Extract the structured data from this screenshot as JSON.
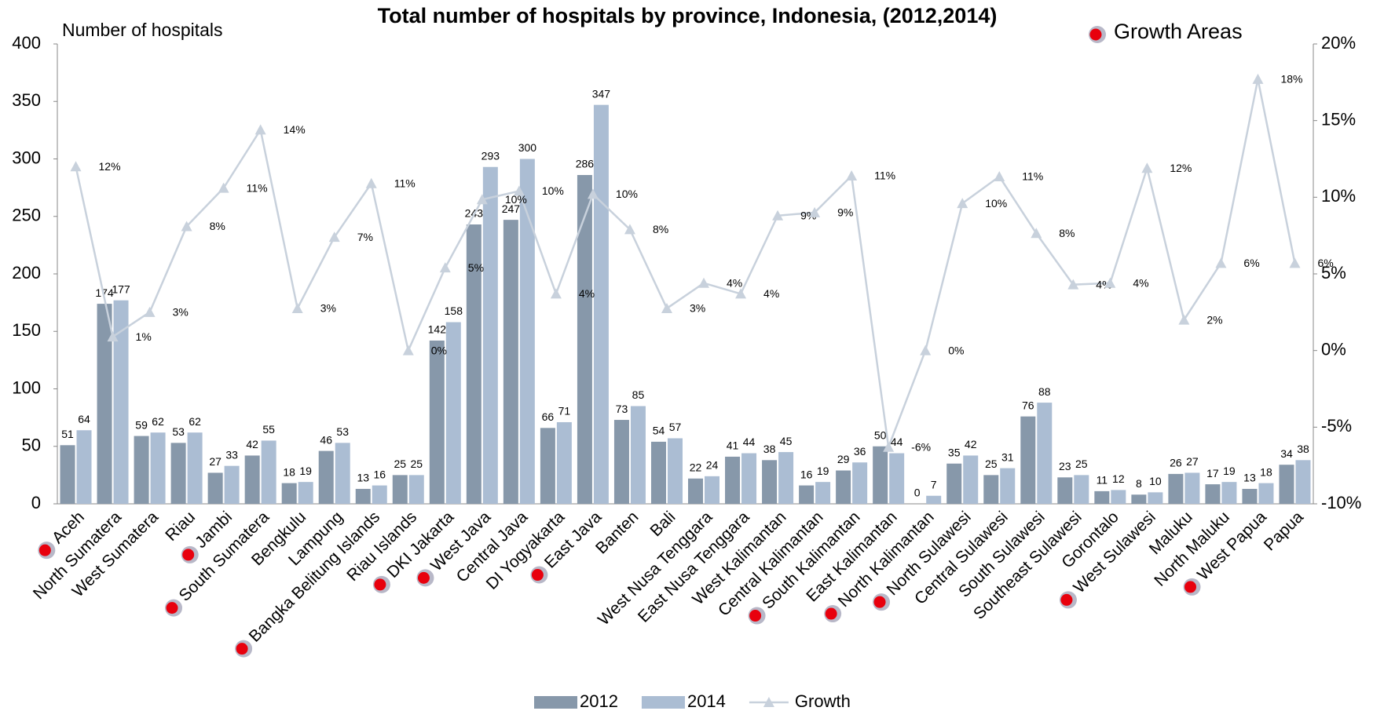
{
  "chart_data": {
    "type": "bar-line",
    "title": "Total number of hospitals by province, Indonesia, (2012,2014)",
    "y_label": "Number of hospitals",
    "growth_areas_label": "Growth Areas",
    "categories": [
      "Aceh",
      "North Sumatera",
      "West Sumatera",
      "Riau",
      "Jambi",
      "South Sumatera",
      "Bengkulu",
      "Lampung",
      "Bangka Belitung Islands",
      "Riau Islands",
      "DKI Jakarta",
      "West Java",
      "Central Java",
      "DI Yogyakarta",
      "East Java",
      "Banten",
      "Bali",
      "West Nusa Tenggara",
      "East Nusa Tenggara",
      "West Kalimantan",
      "Central Kalimantan",
      "South Kalimantan",
      "East Kalimantan",
      "North Kalimantan",
      "North Sulawesi",
      "Central Sulawesi",
      "South Sulawesi",
      "Southeast Sulawesi",
      "Gorontalo",
      "West Sulawesi",
      "Maluku",
      "North Maluku",
      "West Papua",
      "Papua"
    ],
    "growth_area": [
      true,
      false,
      false,
      false,
      true,
      true,
      false,
      false,
      true,
      false,
      true,
      true,
      false,
      false,
      true,
      false,
      false,
      false,
      false,
      false,
      false,
      true,
      false,
      true,
      true,
      false,
      false,
      false,
      false,
      true,
      false,
      false,
      true,
      false
    ],
    "series": [
      {
        "name": "2012",
        "type": "bar",
        "color": "#8798aa",
        "values": [
          51,
          174,
          59,
          53,
          27,
          42,
          18,
          46,
          13,
          25,
          142,
          243,
          247,
          66,
          286,
          73,
          54,
          22,
          41,
          38,
          16,
          29,
          50,
          0,
          35,
          25,
          76,
          23,
          11,
          8,
          26,
          17,
          13,
          34
        ]
      },
      {
        "name": "2014",
        "type": "bar",
        "color": "#abbdd3",
        "values": [
          64,
          177,
          62,
          62,
          33,
          55,
          19,
          53,
          16,
          25,
          158,
          293,
          300,
          71,
          347,
          85,
          57,
          24,
          44,
          45,
          19,
          36,
          44,
          7,
          42,
          31,
          88,
          25,
          12,
          10,
          27,
          19,
          18,
          38
        ]
      },
      {
        "name": "Growth",
        "type": "line",
        "axis": "y2",
        "color": "#c8d1dc",
        "values": [
          12.0,
          0.9,
          2.5,
          8.1,
          10.6,
          14.4,
          2.75,
          7.4,
          10.9,
          0,
          5.4,
          9.85,
          10.4,
          3.7,
          10.2,
          7.9,
          2.75,
          4.4,
          3.7,
          8.8,
          9.0,
          11.4,
          -6.3,
          0,
          9.6,
          11.35,
          7.65,
          4.3,
          4.4,
          11.9,
          2.0,
          5.7,
          17.7,
          5.7
        ],
        "value_labels": [
          "12%",
          "1%",
          "3%",
          "8%",
          "11%",
          "14%",
          "3%",
          "7%",
          "11%",
          "0%",
          "5%",
          "10%",
          "10%",
          "4%",
          "10%",
          "8%",
          "3%",
          "4%",
          "4%",
          "9%",
          "9%",
          "11%",
          "-6%",
          "0%",
          "10%",
          "11%",
          "8%",
          "4%",
          "4%",
          "12%",
          "2%",
          "6%",
          "18%",
          "6%"
        ]
      }
    ],
    "ylim": [
      0,
      400
    ],
    "yticks": [
      0,
      50,
      100,
      150,
      200,
      250,
      300,
      350,
      400
    ],
    "y2lim": [
      -10,
      20
    ],
    "y2ticks": [
      {
        "value": -10,
        "label": "-10%"
      },
      {
        "value": -5,
        "label": "-5%"
      },
      {
        "value": 0,
        "label": "0%"
      },
      {
        "value": 5,
        "label": "5%"
      },
      {
        "value": 10,
        "label": "10%"
      },
      {
        "value": 15,
        "label": "15%"
      },
      {
        "value": 20,
        "label": "20%"
      }
    ],
    "legend": "bottom",
    "grid": false
  }
}
